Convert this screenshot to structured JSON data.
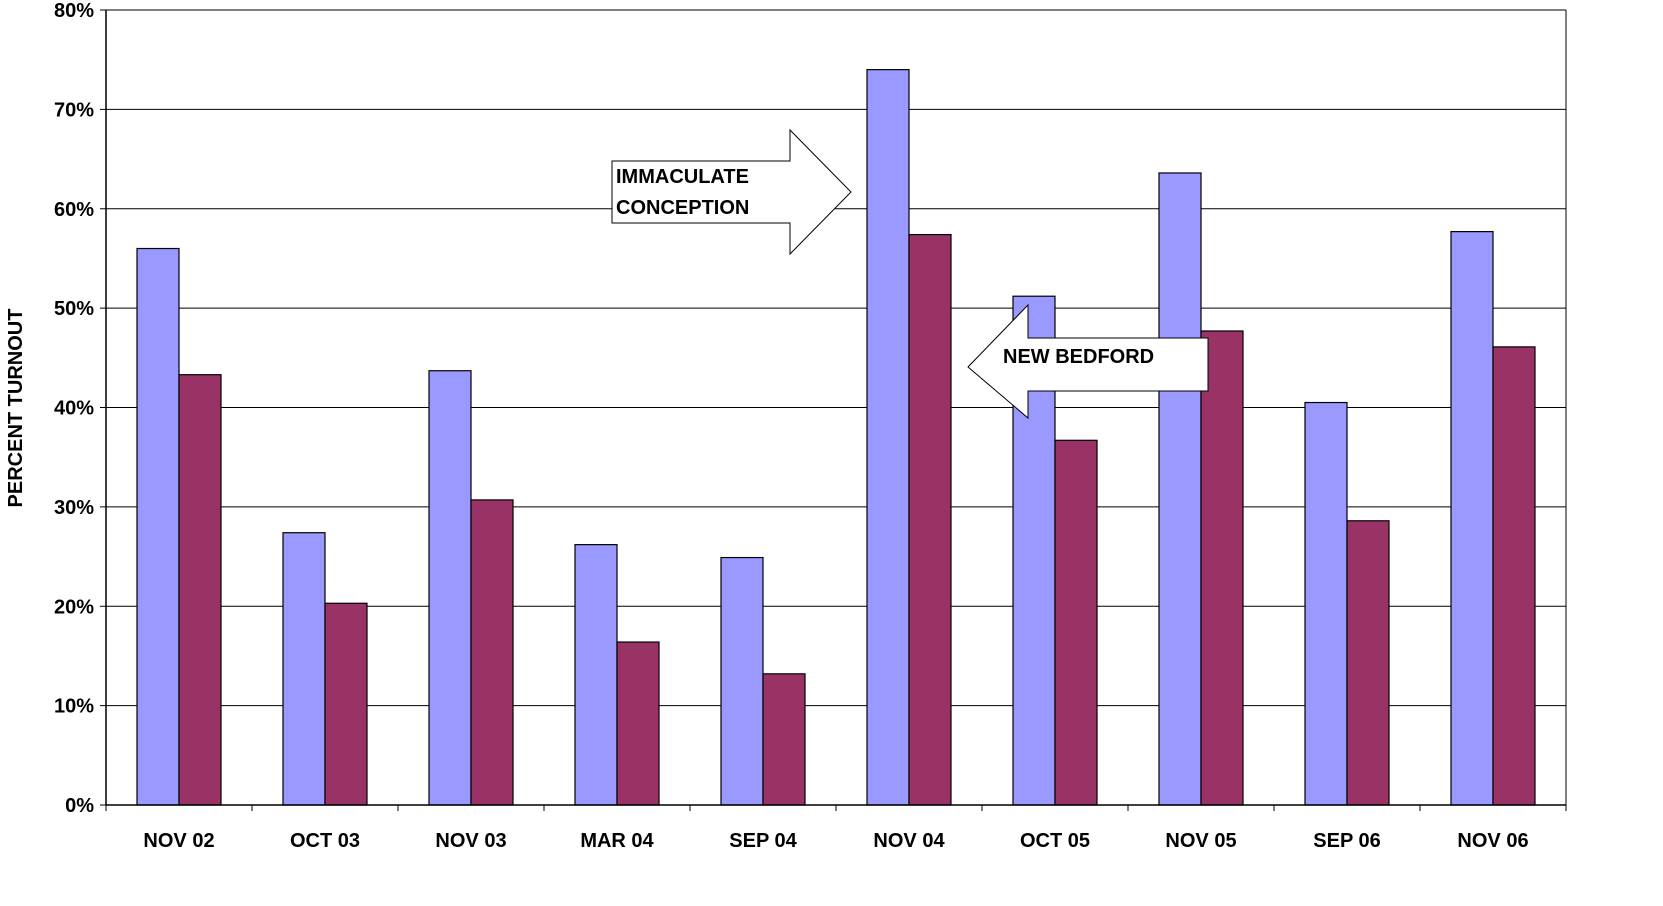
{
  "chart_data": {
    "type": "bar",
    "title": "",
    "xlabel": "",
    "ylabel": "PERCENT TURNOUT",
    "ylim": [
      0,
      80
    ],
    "yticks": [
      "0%",
      "10%",
      "20%",
      "30%",
      "40%",
      "50%",
      "60%",
      "70%",
      "80%"
    ],
    "grid": true,
    "legend": "none",
    "categories": [
      "NOV 02",
      "OCT 03",
      "NOV 03",
      "MAR 04",
      "SEP 04",
      "NOV 04",
      "OCT 05",
      "NOV 05",
      "SEP 06",
      "NOV 06"
    ],
    "series": [
      {
        "color": "#9999ff",
        "values": [
          56.0,
          27.4,
          43.7,
          26.2,
          24.9,
          74.0,
          51.2,
          63.6,
          40.5,
          57.7
        ]
      },
      {
        "color": "#993366",
        "values": [
          43.3,
          20.3,
          30.7,
          16.4,
          13.2,
          57.4,
          36.7,
          47.7,
          28.6,
          46.1
        ]
      }
    ],
    "annotations": [
      {
        "lines": [
          "IMMACULATE",
          "CONCEPTION"
        ],
        "direction": "right",
        "points_to": "NOV 04"
      },
      {
        "lines": [
          "NEW BEDFORD"
        ],
        "direction": "left",
        "points_to": "OCT 05"
      }
    ]
  }
}
